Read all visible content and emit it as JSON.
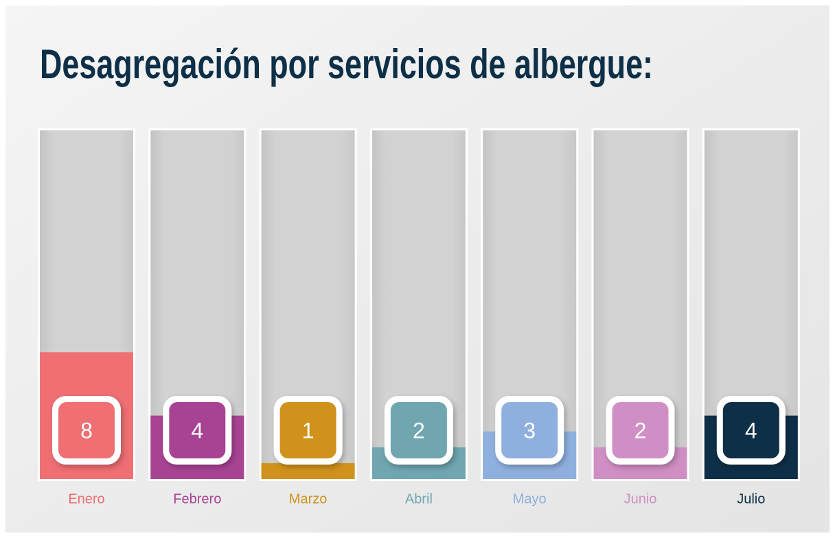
{
  "chart_data": {
    "type": "bar",
    "title": "Desagregación por servicios de albergue:",
    "categories": [
      "Enero",
      "Febrero",
      "Marzo",
      "Abril",
      "Mayo",
      "Junio",
      "Julio"
    ],
    "values": [
      8,
      4,
      1,
      2,
      3,
      2,
      4
    ],
    "colors": [
      "#ef6f73",
      "#a84394",
      "#d0921c",
      "#6fa6b0",
      "#8fb0de",
      "#d08fc4",
      "#0d2f47"
    ],
    "ylim": [
      0,
      22
    ]
  }
}
